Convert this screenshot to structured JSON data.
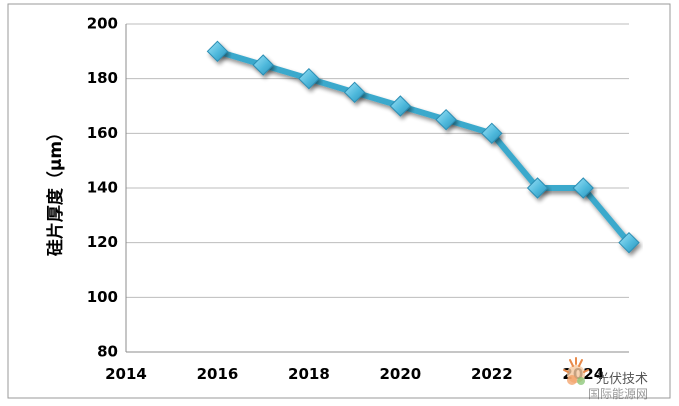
{
  "chart_data": {
    "type": "line",
    "title": "",
    "xlabel": "",
    "ylabel": "硅片厚度（μm）",
    "x": [
      2016,
      2017,
      2018,
      2019,
      2020,
      2021,
      2022,
      2023,
      2024,
      2025
    ],
    "series": [
      {
        "values": [
          190,
          185,
          180,
          175,
          170,
          165,
          160,
          140,
          140,
          120
        ]
      }
    ],
    "xlim": [
      2014,
      2025
    ],
    "ylim": [
      80,
      200
    ],
    "xticks": [
      2014,
      2016,
      2018,
      2020,
      2022,
      2024
    ],
    "yticks": [
      80,
      100,
      120,
      140,
      160,
      180,
      200
    ],
    "grid": "horizontal",
    "legend": "none",
    "line_color": "#3aa9cc",
    "marker": "diamond",
    "marker_color": "#5ec4e4"
  },
  "watermark": {
    "line1": "光伏技术",
    "line2": "国际能源网",
    "color": "#f08040"
  }
}
